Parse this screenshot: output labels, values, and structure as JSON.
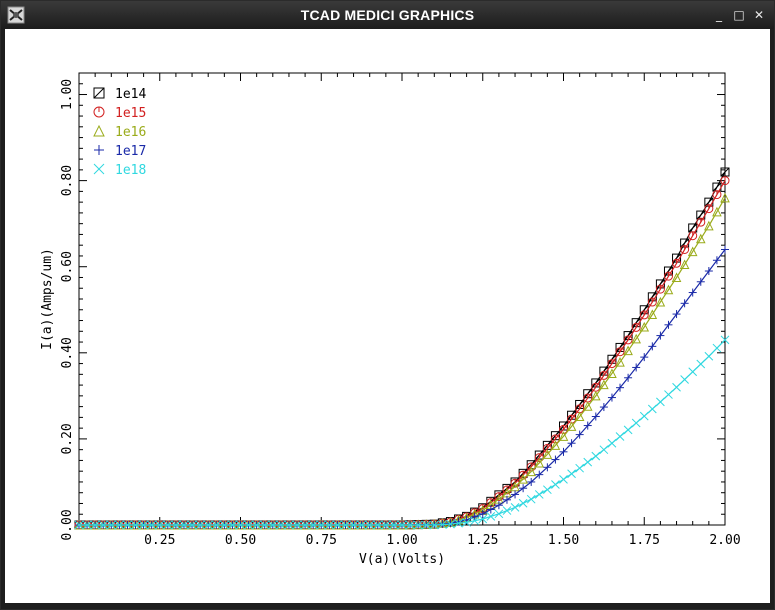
{
  "window": {
    "title": "TCAD MEDICI GRAPHICS",
    "buttons": {
      "minimize": "_",
      "maximize": "□",
      "close": "✕"
    },
    "app_icon": "medici-app-icon"
  },
  "chart_data": {
    "type": "line",
    "title": "",
    "xlabel": "V(a)(Volts)",
    "ylabel": "I(a)(Amps/um)",
    "xlim": [
      0.0,
      2.0
    ],
    "ylim": [
      0.0,
      1.0
    ],
    "xticks": [
      "0.25",
      "0.50",
      "0.75",
      "1.00",
      "1.25",
      "1.50",
      "1.75",
      "2.00"
    ],
    "yticks": [
      "0.00",
      "0.20",
      "0.40",
      "0.60",
      "0.80",
      "1.00"
    ],
    "legend_position": "top-left",
    "series": [
      {
        "name": "1e14",
        "marker": "square",
        "color": "#000000",
        "x": [
          0,
          0.5,
          1.0,
          1.1,
          1.15,
          1.2,
          1.25,
          1.3,
          1.35,
          1.4,
          1.45,
          1.5,
          1.55,
          1.6,
          1.65,
          1.7,
          1.75,
          1.8,
          1.85,
          1.9,
          1.95,
          2.0
        ],
        "y": [
          0,
          0,
          0,
          0.002,
          0.008,
          0.02,
          0.04,
          0.07,
          0.1,
          0.14,
          0.185,
          0.23,
          0.28,
          0.33,
          0.385,
          0.44,
          0.5,
          0.56,
          0.62,
          0.69,
          0.75,
          0.82
        ]
      },
      {
        "name": "1e15",
        "marker": "circle",
        "color": "#d22020",
        "x": [
          0,
          0.5,
          1.0,
          1.1,
          1.15,
          1.2,
          1.25,
          1.3,
          1.35,
          1.4,
          1.45,
          1.5,
          1.55,
          1.6,
          1.65,
          1.7,
          1.75,
          1.8,
          1.85,
          1.9,
          1.95,
          2.0
        ],
        "y": [
          0,
          0,
          0,
          0.002,
          0.007,
          0.019,
          0.038,
          0.066,
          0.097,
          0.135,
          0.178,
          0.222,
          0.27,
          0.32,
          0.375,
          0.43,
          0.488,
          0.548,
          0.608,
          0.672,
          0.735,
          0.8
        ]
      },
      {
        "name": "1e16",
        "marker": "triangle",
        "color": "#9aab1a",
        "x": [
          0,
          0.5,
          1.0,
          1.1,
          1.15,
          1.2,
          1.25,
          1.3,
          1.35,
          1.4,
          1.45,
          1.5,
          1.55,
          1.6,
          1.65,
          1.7,
          1.75,
          1.8,
          1.85,
          1.9,
          1.95,
          2.0
        ],
        "y": [
          0,
          0,
          0,
          0.002,
          0.006,
          0.017,
          0.034,
          0.06,
          0.089,
          0.124,
          0.164,
          0.206,
          0.252,
          0.3,
          0.352,
          0.405,
          0.46,
          0.518,
          0.575,
          0.635,
          0.695,
          0.76
        ]
      },
      {
        "name": "1e17",
        "marker": "plus",
        "color": "#1a2aa8",
        "x": [
          0,
          0.5,
          1.0,
          1.1,
          1.15,
          1.2,
          1.25,
          1.3,
          1.35,
          1.4,
          1.45,
          1.5,
          1.55,
          1.6,
          1.65,
          1.7,
          1.75,
          1.8,
          1.85,
          1.9,
          1.95,
          2.0
        ],
        "y": [
          0,
          0,
          0,
          0.001,
          0.004,
          0.012,
          0.026,
          0.046,
          0.071,
          0.1,
          0.134,
          0.17,
          0.21,
          0.252,
          0.296,
          0.342,
          0.39,
          0.44,
          0.49,
          0.54,
          0.59,
          0.64
        ]
      },
      {
        "name": "1e18",
        "marker": "cross",
        "color": "#30d8e0",
        "x": [
          0,
          0.5,
          1.0,
          1.1,
          1.15,
          1.2,
          1.25,
          1.3,
          1.35,
          1.4,
          1.45,
          1.5,
          1.55,
          1.6,
          1.65,
          1.7,
          1.75,
          1.8,
          1.85,
          1.9,
          1.95,
          2.0
        ],
        "y": [
          0,
          0,
          0,
          0.0,
          0.002,
          0.006,
          0.014,
          0.026,
          0.041,
          0.06,
          0.082,
          0.106,
          0.132,
          0.16,
          0.19,
          0.221,
          0.253,
          0.286,
          0.32,
          0.356,
          0.392,
          0.43
        ]
      }
    ]
  }
}
